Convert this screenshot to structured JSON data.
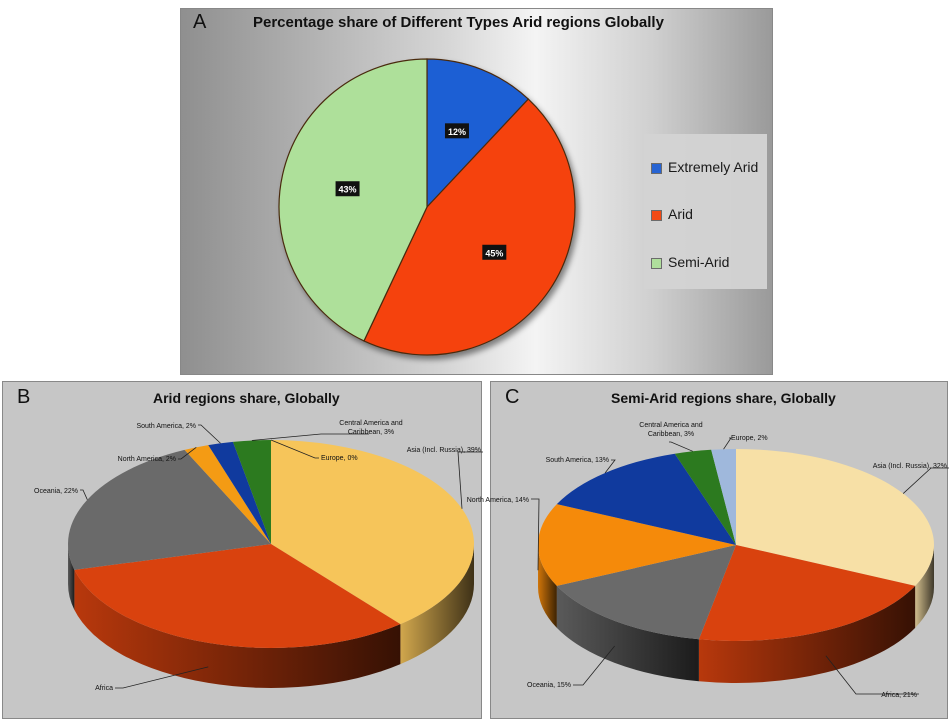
{
  "chart_data": [
    {
      "panel_letter": "A",
      "type": "pie",
      "title": "Percentage share of Different Types  Arid regions Globally",
      "categories": [
        "Extremely Arid",
        "Arid",
        "Semi-Arid"
      ],
      "values": [
        12,
        45,
        43
      ],
      "labels": [
        "12%",
        "45%",
        "43%"
      ],
      "colors": [
        "#1f5fd4",
        "#f5430b",
        "#aee09a"
      ],
      "legend_position": "right"
    },
    {
      "panel_letter": "B",
      "type": "pie",
      "title": "Arid regions share, Globally",
      "categories": [
        "Asia (Incl. Russia)",
        "Africa",
        "Oceania",
        "North America",
        "South America",
        "Central America and Caribbean",
        "Europe"
      ],
      "values": [
        39,
        32,
        22,
        2,
        2,
        3,
        0
      ],
      "labels": [
        "Asia (Incl. Russia), 39%",
        "Africa",
        "Oceania, 22%",
        "North America, 2%",
        "South America, 2%",
        "Central America and Caribbean, 3%",
        "Europe, 0%"
      ],
      "colors": [
        "#f6c55a",
        "#d9420e",
        "#6a6a6a",
        "#f49b14",
        "#103a9e",
        "#2c7a1f",
        "#9fb8dc"
      ],
      "style": "3d"
    },
    {
      "panel_letter": "C",
      "type": "pie",
      "title": "Semi-Arid regions share, Globally",
      "categories": [
        "Asia (Incl. Russia)",
        "Africa",
        "Oceania",
        "North America",
        "South America",
        "Central America and Caribbean",
        "Europe"
      ],
      "values": [
        32,
        21,
        15,
        14,
        13,
        3,
        2
      ],
      "labels": [
        "Asia (Incl. Russia), 32%",
        "Africa, 21%",
        "Oceania, 15%",
        "North America, 14%",
        "South America, 13%",
        "Central America and Caribbean, 3%",
        "Europe, 2%"
      ],
      "colors": [
        "#f7e0a6",
        "#d9420e",
        "#6a6a6a",
        "#f58a0a",
        "#103a9e",
        "#2c7a1f",
        "#9fb8dc"
      ],
      "style": "3d"
    }
  ]
}
